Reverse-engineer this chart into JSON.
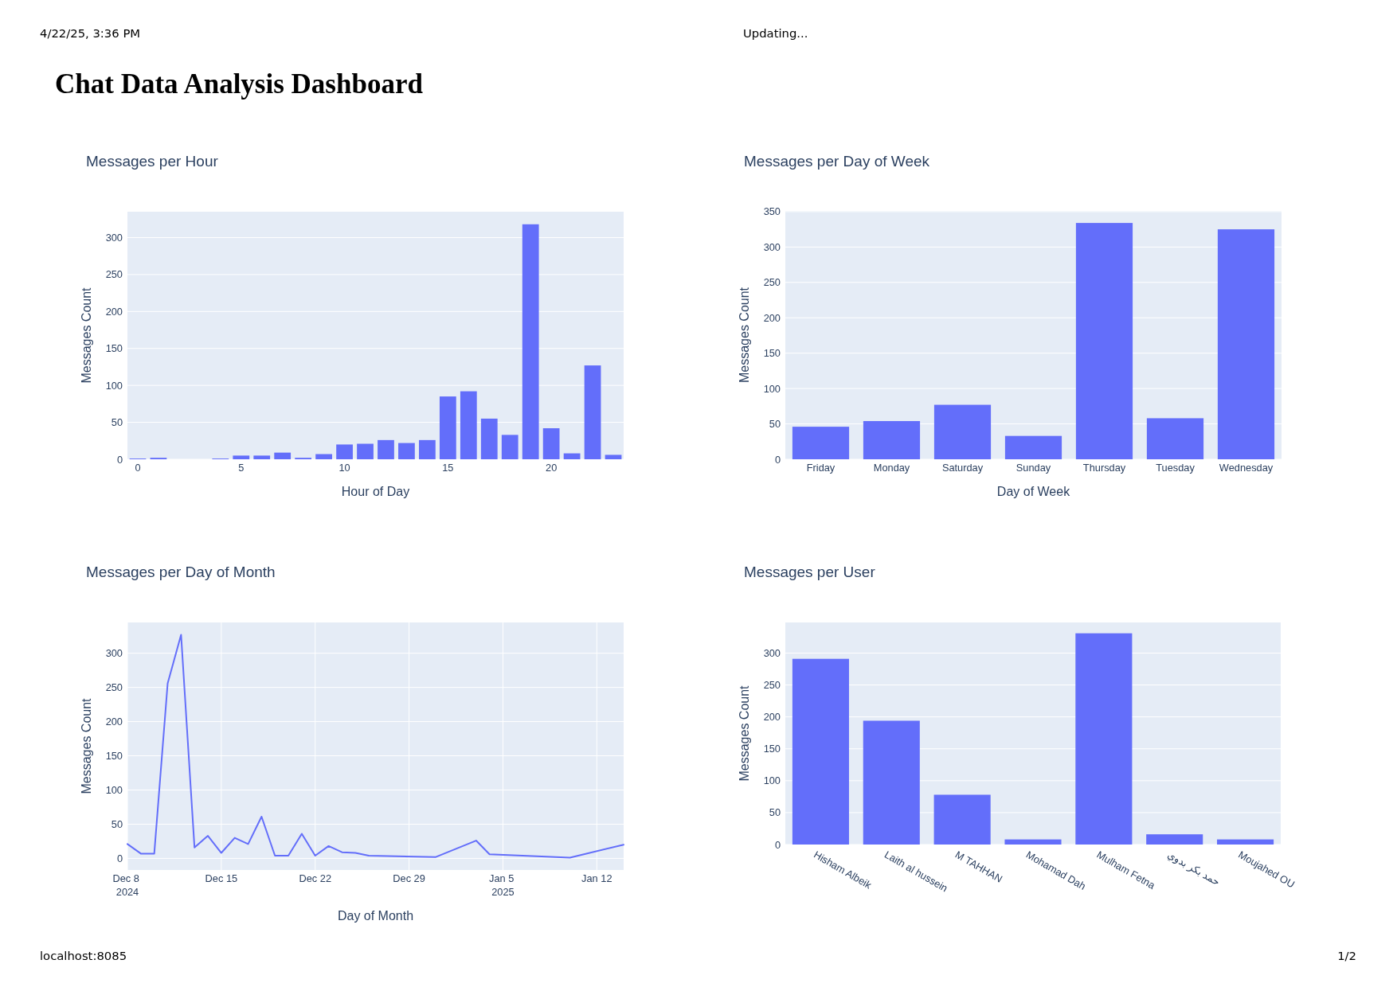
{
  "chart_data": [
    {
      "type": "other",
      "title": "Chat Data Analysis Dashboard",
      "annotations": [
        "4/22/25, 3:36 PM",
        "Updating...",
        "localhost:8085",
        "1/2"
      ]
    },
    {
      "type": "bar",
      "title": "Messages per Hour",
      "xlabel": "Hour of Day",
      "ylabel": "Messages Count",
      "x": [
        0,
        1,
        4,
        5,
        6,
        7,
        8,
        9,
        10,
        11,
        12,
        13,
        14,
        15,
        16,
        17,
        18,
        19,
        20,
        21,
        22,
        23
      ],
      "values": [
        1,
        2,
        1,
        5,
        5,
        9,
        2,
        7,
        20,
        21,
        26,
        22,
        26,
        85,
        92,
        55,
        33,
        318,
        42,
        8,
        127,
        6
      ],
      "color": "#636efa",
      "xlim": [
        -0.5,
        23.5
      ],
      "xticks": [
        0,
        5,
        10,
        15,
        20
      ],
      "ylim": [
        0,
        335
      ],
      "yticks": [
        0,
        50,
        100,
        150,
        200,
        250,
        300
      ],
      "grid": "y"
    },
    {
      "type": "bar",
      "title": "Messages per Day of Week",
      "xlabel": "Day of Week",
      "ylabel": "Messages Count",
      "categories": [
        "Friday",
        "Monday",
        "Saturday",
        "Sunday",
        "Thursday",
        "Tuesday",
        "Wednesday"
      ],
      "values": [
        46,
        54,
        77,
        33,
        334,
        58,
        325
      ],
      "color": "#636efa",
      "ylim": [
        0,
        351
      ],
      "yticks": [
        0,
        50,
        100,
        150,
        200,
        250,
        300,
        350
      ],
      "grid": "y"
    },
    {
      "type": "line",
      "title": "Messages per Day of Month",
      "xlabel": "Day of Month",
      "ylabel": "Messages Count",
      "x": [
        "2024-12-08",
        "2024-12-09",
        "2024-12-10",
        "2024-12-11",
        "2024-12-12",
        "2024-12-13",
        "2024-12-14",
        "2024-12-15",
        "2024-12-16",
        "2024-12-17",
        "2024-12-18",
        "2024-12-19",
        "2024-12-20",
        "2024-12-21",
        "2024-12-22",
        "2024-12-23",
        "2024-12-24",
        "2024-12-25",
        "2024-12-26",
        "2024-12-31",
        "2025-01-03",
        "2025-01-04",
        "2025-01-10",
        "2025-01-14"
      ],
      "values": [
        21,
        7,
        7,
        256,
        327,
        16,
        33,
        8,
        30,
        21,
        61,
        4,
        4,
        36,
        4,
        18,
        9,
        8,
        4,
        2,
        26,
        6,
        1,
        20
      ],
      "color": "#636efa",
      "xlim": [
        "2024-12-08",
        "2025-01-14"
      ],
      "xticks": [
        {
          "value": "2024-12-08",
          "label": "Dec 8 2024"
        },
        {
          "value": "2024-12-15",
          "label": "Dec 15"
        },
        {
          "value": "2024-12-22",
          "label": "Dec 22"
        },
        {
          "value": "2024-12-29",
          "label": "Dec 29"
        },
        {
          "value": "2025-01-05",
          "label": "Jan 5 2025"
        },
        {
          "value": "2025-01-12",
          "label": "Jan 12"
        }
      ],
      "ylim": [
        -17,
        345
      ],
      "yticks": [
        0,
        50,
        100,
        150,
        200,
        250,
        300
      ],
      "grid": true
    },
    {
      "type": "bar",
      "title": "Messages per User",
      "ylabel": "Messages Count",
      "categories": [
        "Hisham Albeik",
        "Laith al hussein",
        "M TAHHAN",
        "Mohamad Dah",
        "Mulham Fetna",
        "حمد بكر بدوي",
        "Moujahed OU"
      ],
      "values": [
        291,
        194,
        78,
        8,
        331,
        16,
        8
      ],
      "color": "#636efa",
      "ylim": [
        0,
        348
      ],
      "yticks": [
        0,
        50,
        100,
        150,
        200,
        250,
        300
      ],
      "grid": "y"
    }
  ]
}
